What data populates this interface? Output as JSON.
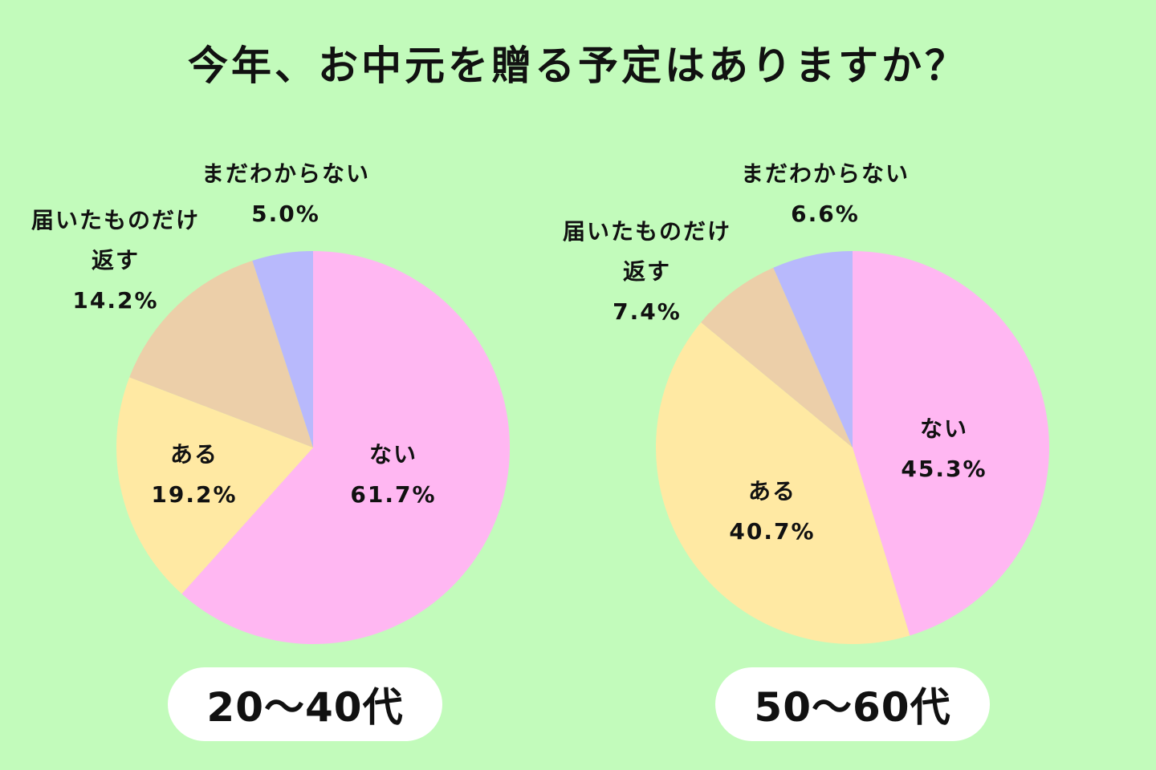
{
  "title": "今年、お中元を贈る予定はありますか？",
  "colors": {
    "background": "#c2fbbb",
    "nai": "#ffb7f2",
    "aru": "#ffe9a3",
    "todoita": "#eccfa9",
    "mada": "#b8b9fc"
  },
  "chart_data": [
    {
      "type": "pie",
      "group_label": "20〜40代",
      "slices": [
        {
          "label": "ない",
          "value": 61.7,
          "value_label": "61.7%",
          "color": "#ffb7f2"
        },
        {
          "label": "ある",
          "value": 19.2,
          "value_label": "19.2%",
          "color": "#ffe9a3"
        },
        {
          "label_lines": [
            "届いたものだけ",
            "返す"
          ],
          "value": 14.2,
          "value_label": "14.2%",
          "color": "#eccfa9"
        },
        {
          "label": "まだわからない",
          "value": 5.0,
          "value_label": "5.0%",
          "color": "#b8b9fc"
        }
      ]
    },
    {
      "type": "pie",
      "group_label": "50〜60代",
      "slices": [
        {
          "label": "ない",
          "value": 45.3,
          "value_label": "45.3%",
          "color": "#ffb7f2"
        },
        {
          "label": "ある",
          "value": 40.7,
          "value_label": "40.7%",
          "color": "#ffe9a3"
        },
        {
          "label_lines": [
            "届いたものだけ",
            "返す"
          ],
          "value": 7.4,
          "value_label": "7.4%",
          "color": "#eccfa9"
        },
        {
          "label": "まだわからない",
          "value": 6.6,
          "value_label": "6.6%",
          "color": "#b8b9fc"
        }
      ]
    }
  ]
}
